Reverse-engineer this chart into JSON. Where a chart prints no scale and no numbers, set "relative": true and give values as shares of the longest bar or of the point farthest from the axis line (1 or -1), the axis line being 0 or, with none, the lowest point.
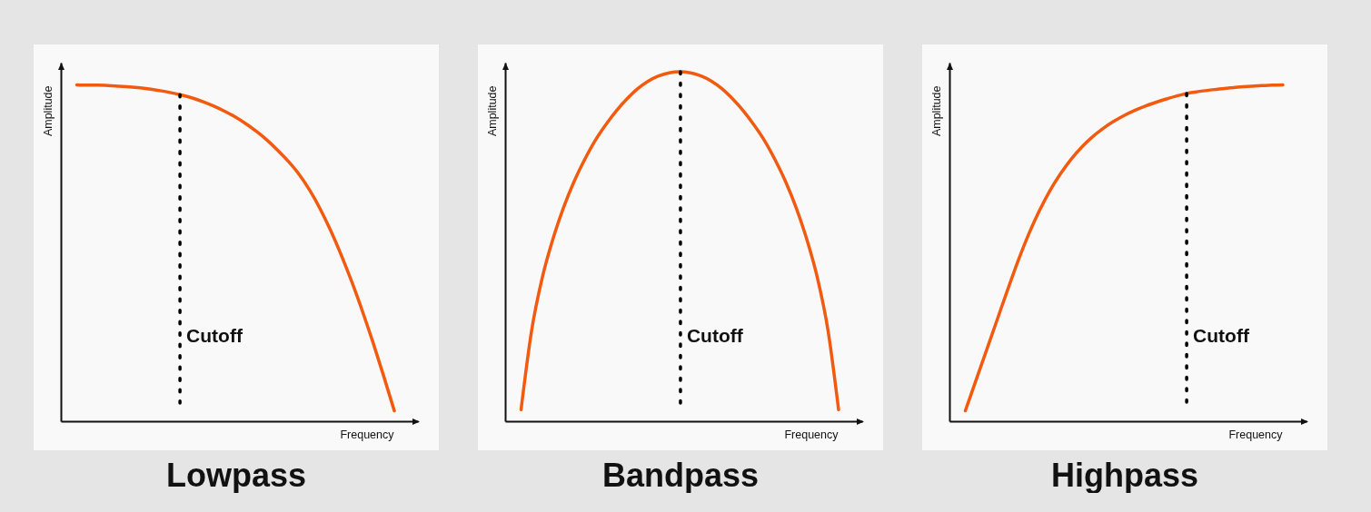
{
  "chart_data": [
    {
      "type": "line",
      "title": "Lowpass",
      "xlabel": "Frequency",
      "ylabel": "Amplitude",
      "relative": true,
      "categories": [
        null,
        null,
        null,
        null,
        null,
        null,
        null,
        null,
        null,
        null,
        null,
        null,
        null,
        null,
        null,
        null,
        null,
        null,
        null,
        null,
        null,
        null,
        null,
        null,
        null,
        null,
        null,
        null,
        null,
        null,
        null
      ],
      "color": "#f15a0f",
      "values": [
        1,
        0.999,
        0.999,
        0.998,
        0.996,
        0.994,
        0.991,
        0.987,
        0.982,
        0.976,
        0.969,
        0.96,
        0.949,
        0.936,
        0.921,
        0.904,
        0.884,
        0.861,
        0.835,
        0.805,
        0.772,
        0.734,
        0.687,
        0.631,
        0.566,
        0.493,
        0.413,
        0.326,
        0.233,
        0.134,
        0.031
      ],
      "annotations": [
        "Cutoff"
      ]
    },
    {
      "type": "line",
      "title": "Bandpass",
      "xlabel": "Frequency",
      "ylabel": "Amplitude",
      "relative": true,
      "categories": [
        null,
        null,
        null,
        null,
        null,
        null,
        null,
        null,
        null,
        null,
        null,
        null,
        null,
        null,
        null,
        null,
        null,
        null,
        null,
        null,
        null,
        null,
        null,
        null,
        null,
        null,
        null,
        null,
        null,
        null,
        null
      ],
      "color": "#f15a0f",
      "values": [
        0.033,
        0.26,
        0.41,
        0.52,
        0.61,
        0.685,
        0.748,
        0.803,
        0.848,
        0.888,
        0.922,
        0.951,
        0.973,
        0.988,
        0.997,
        1,
        0.997,
        0.988,
        0.973,
        0.951,
        0.922,
        0.888,
        0.848,
        0.803,
        0.748,
        0.685,
        0.61,
        0.52,
        0.41,
        0.26,
        0.033
      ],
      "annotations": [
        "Cutoff"
      ]
    },
    {
      "type": "line",
      "title": "Highpass",
      "xlabel": "Frequency",
      "ylabel": "Amplitude",
      "relative": true,
      "categories": [
        null,
        null,
        null,
        null,
        null,
        null,
        null,
        null,
        null,
        null,
        null,
        null,
        null,
        null,
        null,
        null,
        null,
        null,
        null,
        null,
        null,
        null,
        null,
        null,
        null,
        null,
        null,
        null,
        null,
        null,
        null
      ],
      "color": "#f15a0f",
      "values": [
        0.031,
        0.121,
        0.211,
        0.301,
        0.391,
        0.478,
        0.557,
        0.626,
        0.686,
        0.736,
        0.779,
        0.815,
        0.845,
        0.87,
        0.891,
        0.909,
        0.924,
        0.937,
        0.948,
        0.958,
        0.967,
        0.975,
        0.98,
        0.984,
        0.988,
        0.991,
        0.994,
        0.996,
        0.998,
        0.999,
        1
      ],
      "annotations": [
        "Cutoff"
      ]
    }
  ]
}
